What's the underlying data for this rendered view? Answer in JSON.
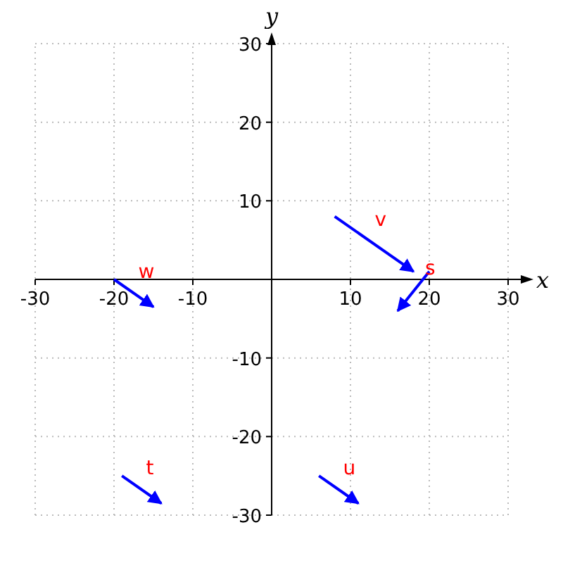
{
  "chart_data": {
    "type": "line",
    "xlabel": "x",
    "ylabel": "y",
    "xlim": [
      -30,
      30
    ],
    "ylim": [
      -30,
      30
    ],
    "xticks": [
      -30,
      -20,
      -10,
      10,
      20,
      30
    ],
    "yticks": [
      -30,
      -20,
      -10,
      10,
      20,
      30
    ],
    "grid": true,
    "series": [
      {
        "name": "v",
        "color": "#0000ff",
        "x": [
          8,
          18
        ],
        "values": [
          8,
          1
        ]
      },
      {
        "name": "s",
        "color": "#0000ff",
        "x": [
          20,
          16
        ],
        "values": [
          1,
          -4
        ]
      },
      {
        "name": "w",
        "color": "#0000ff",
        "x": [
          -20,
          -15
        ],
        "values": [
          0,
          -3.5
        ]
      },
      {
        "name": "t",
        "color": "#0000ff",
        "x": [
          -19,
          -14
        ],
        "values": [
          -25,
          -28.5
        ]
      },
      {
        "name": "u",
        "color": "#0000ff",
        "x": [
          6,
          11
        ],
        "values": [
          -25,
          -28.5
        ]
      }
    ]
  }
}
